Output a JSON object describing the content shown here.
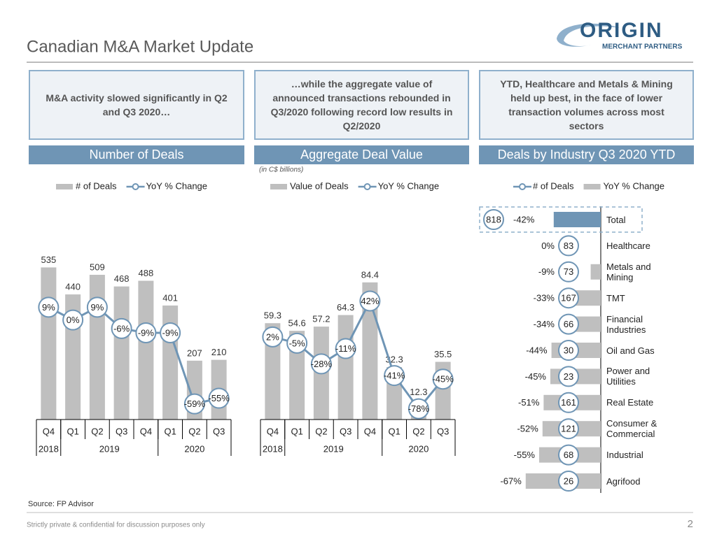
{
  "header": {
    "title": "Canadian M&A Market Update",
    "logo": {
      "name": "ORIGIN",
      "tagline": "MERCHANT PARTNERS"
    }
  },
  "highlights": [
    "M&A activity slowed significantly in Q2 and Q3 2020…",
    "…while the aggregate value of announced transactions rebounded in Q3/2020 following record low results in Q2/2020",
    "YTD, Healthcare and Metals & Mining held up best, in the face of lower transaction volumes across most sectors"
  ],
  "sections": [
    "Number of Deals",
    "Aggregate Deal Value",
    "Deals by Industry Q3 2020 YTD"
  ],
  "chart_data": [
    {
      "type": "bar_line",
      "categories": [
        "Q4",
        "Q1",
        "Q2",
        "Q3",
        "Q4",
        "Q1",
        "Q2",
        "Q3"
      ],
      "groups": [
        {
          "label": "2018",
          "count": 1
        },
        {
          "label": "2019",
          "count": 4
        },
        {
          "label": "2020",
          "count": 3
        }
      ],
      "series": [
        {
          "name": "# of Deals",
          "type": "bar",
          "color": "#bfbfbf",
          "values": [
            535,
            440,
            509,
            468,
            488,
            401,
            207,
            210
          ]
        },
        {
          "name": "YoY % Change",
          "type": "line",
          "axis": "y2",
          "color": "#6f95b5",
          "values": [
            9,
            0,
            9,
            -6,
            -9,
            -9,
            -59,
            -55
          ],
          "value_labels": [
            "9%",
            "0%",
            "9%",
            "-6%",
            "-9%",
            "-9%",
            "-59%",
            "-55%"
          ]
        }
      ],
      "ylim": [
        0,
        600
      ],
      "y2lim": [
        -70,
        50
      ]
    },
    {
      "type": "bar_line",
      "subtitle": "(in C$ billions)",
      "categories": [
        "Q4",
        "Q1",
        "Q2",
        "Q3",
        "Q4",
        "Q1",
        "Q2",
        "Q3"
      ],
      "groups": [
        {
          "label": "2018",
          "count": 1
        },
        {
          "label": "2019",
          "count": 4
        },
        {
          "label": "2020",
          "count": 3
        }
      ],
      "series": [
        {
          "name": "Value of Deals",
          "type": "bar",
          "color": "#bfbfbf",
          "values": [
            59.3,
            54.6,
            57.2,
            64.3,
            84.4,
            32.3,
            12.3,
            35.5
          ]
        },
        {
          "name": "YoY % Change",
          "type": "line",
          "axis": "y2",
          "color": "#6f95b5",
          "values": [
            2,
            -5,
            -28,
            -11,
            42,
            -41,
            -78,
            -45
          ],
          "value_labels": [
            "2%",
            "-5%",
            "-28%",
            "-11%",
            "42%",
            "-41%",
            "-78%",
            "-45%"
          ]
        }
      ],
      "ylim": [
        0,
        105
      ],
      "y2lim": [
        -90,
        100
      ]
    },
    {
      "type": "industry_bar",
      "categories": [
        "Total",
        "Healthcare",
        "Metals and Mining",
        "TMT",
        "Financial Industries",
        "Oil and Gas",
        "Power and Utilities",
        "Real Estate",
        "Consumer & Commercial",
        "Industrial",
        "Agrifood"
      ],
      "series": [
        {
          "name": "# of Deals",
          "type": "marker",
          "color": "#6f95b5",
          "values": [
            818,
            83,
            73,
            167,
            66,
            30,
            23,
            161,
            121,
            68,
            26
          ]
        },
        {
          "name": "YoY % Change",
          "type": "bar",
          "color": "#bfbfbf",
          "highlight_color": "#6f95b5",
          "values": [
            -42,
            0,
            -9,
            -33,
            -34,
            -44,
            -45,
            -51,
            -52,
            -55,
            -67
          ],
          "value_labels": [
            "-42%",
            "0%",
            "-9%",
            "-33%",
            "-34%",
            "-44%",
            "-45%",
            "-51%",
            "-52%",
            "-55%",
            "-67%"
          ]
        }
      ],
      "xlim": [
        -70,
        0
      ]
    }
  ],
  "source": "Source: FP Advisor",
  "footer": "Strictly private & confidential for discussion purposes only",
  "page_number": "2"
}
